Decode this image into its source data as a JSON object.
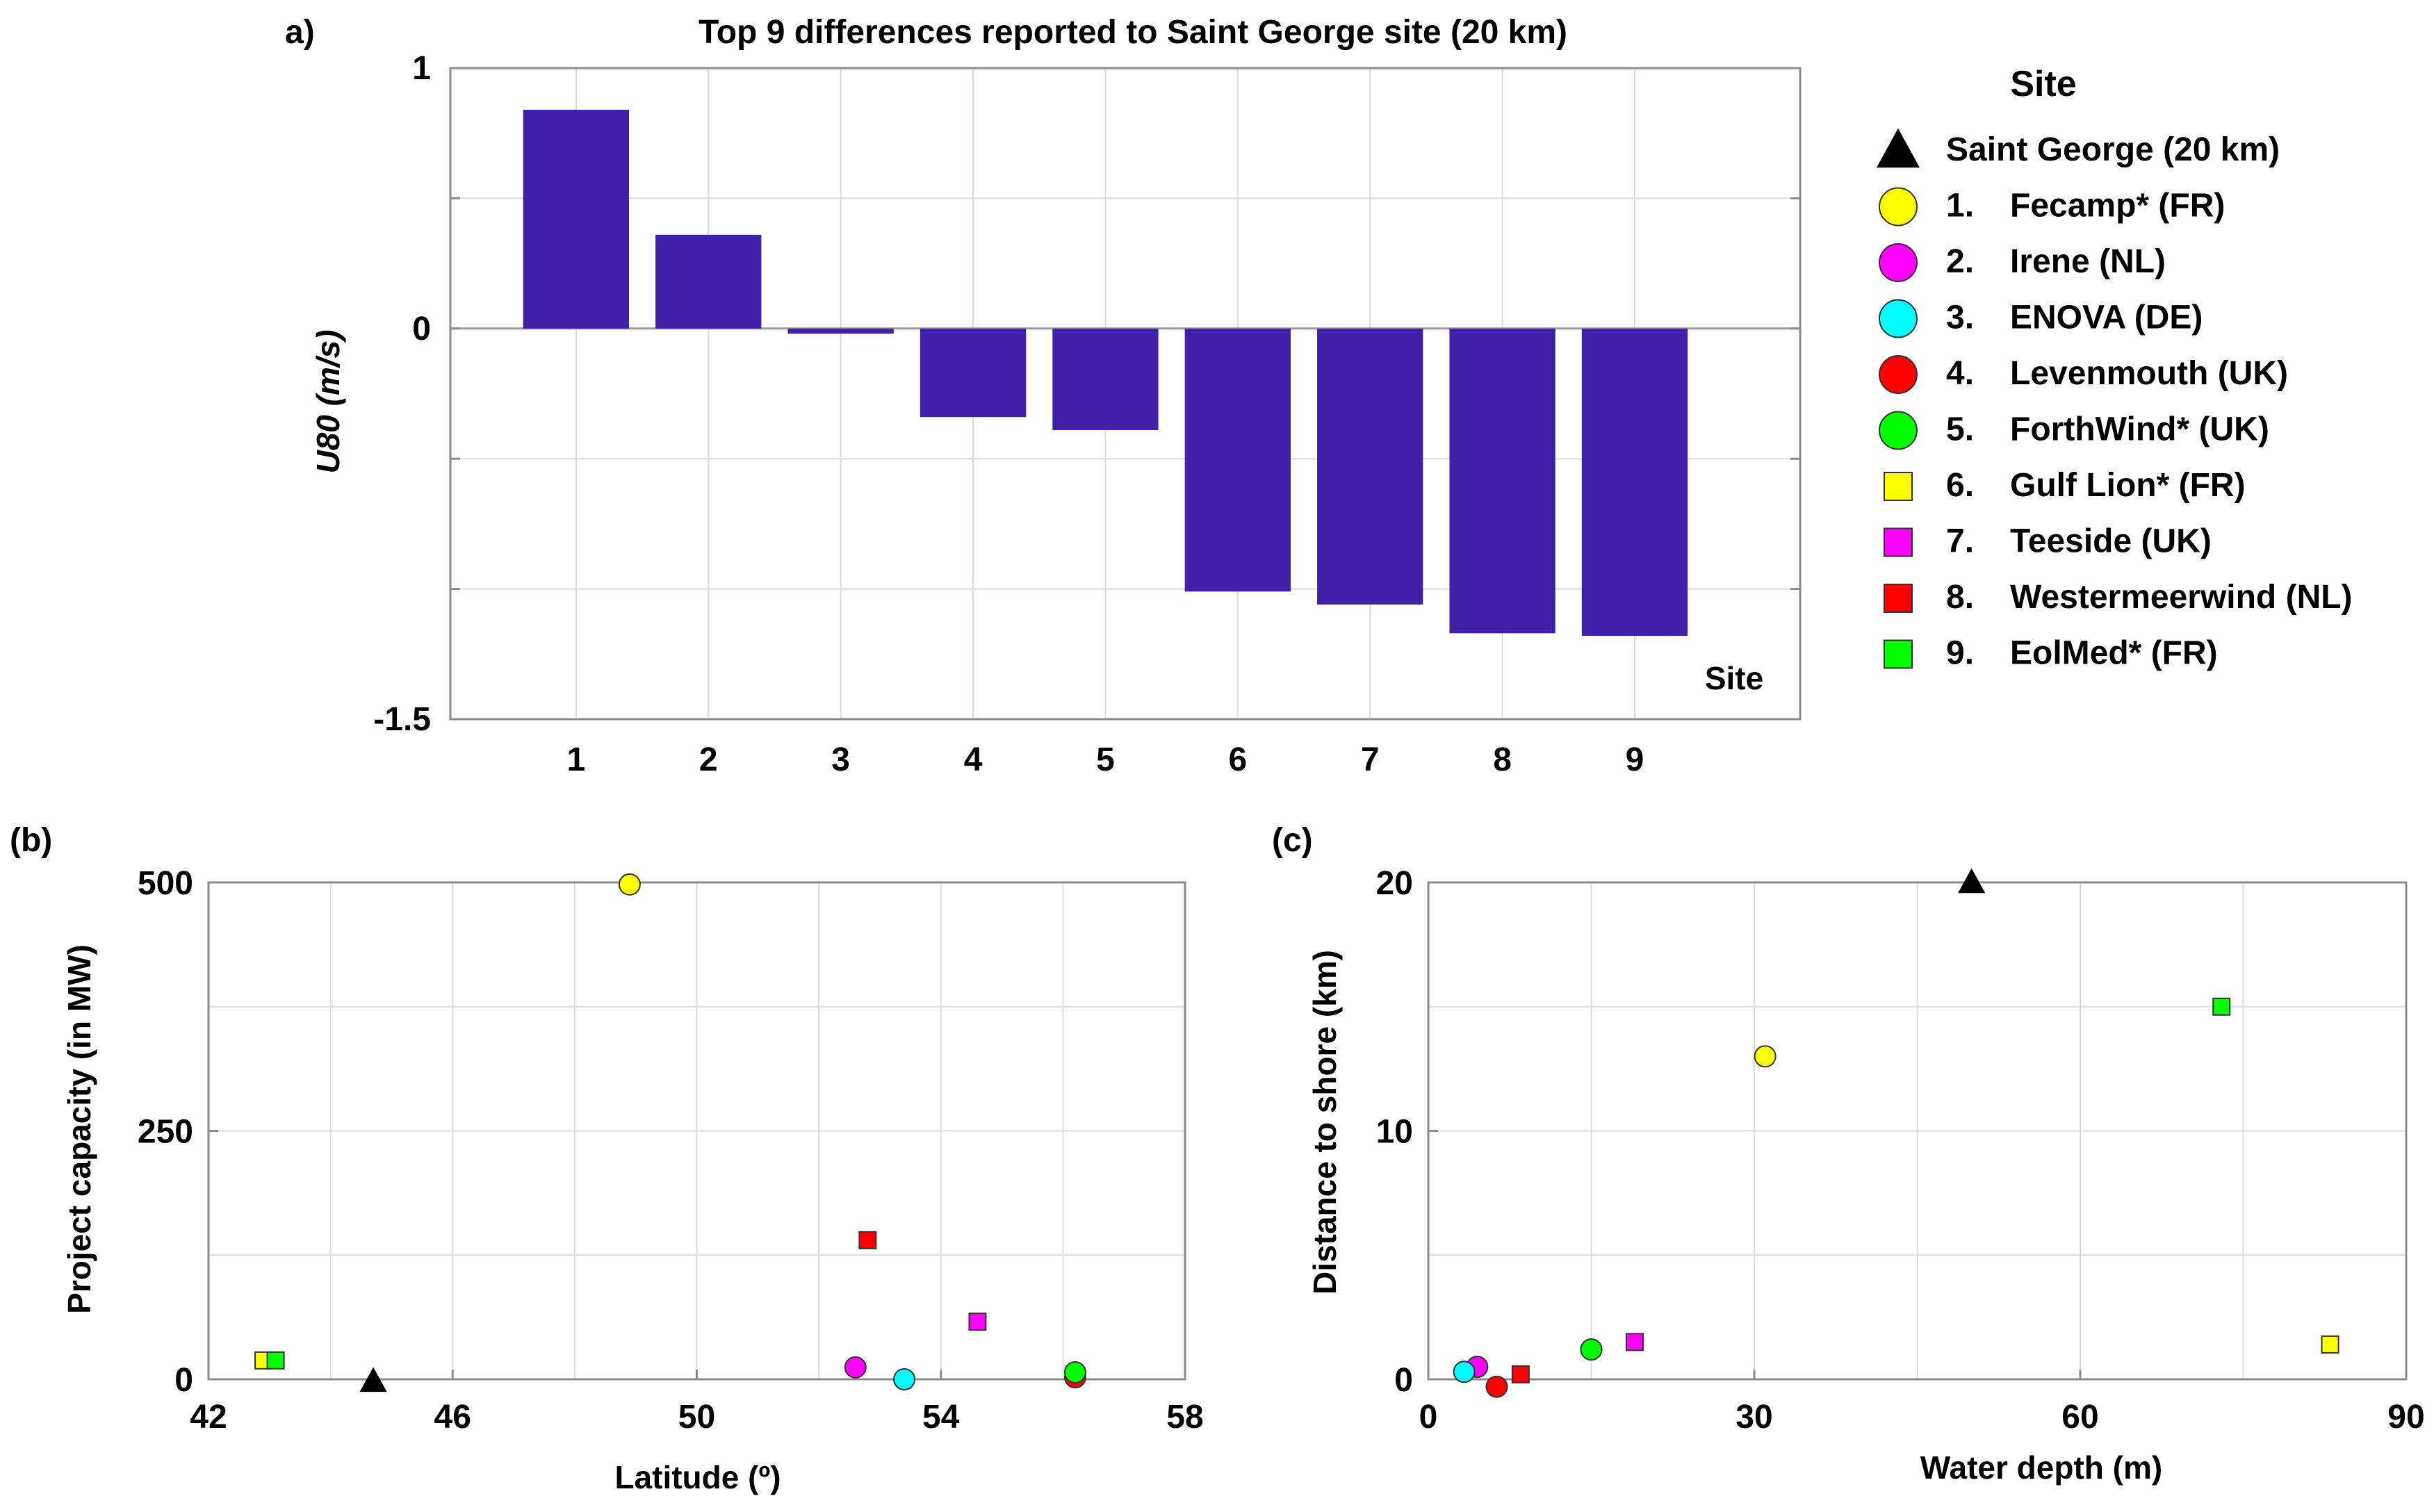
{
  "colors": {
    "bar": "#4020A8",
    "yellow": "#FFFF00",
    "magenta": "#FF00FF",
    "cyan": "#00FFFF",
    "red": "#FF0000",
    "green": "#00FF00",
    "black": "#000000"
  },
  "chart_data": [
    {
      "panel_label": "a)",
      "type": "bar",
      "title": "Top 9 differences reported to Saint George site (20 km)",
      "xlabel": "Site",
      "ylabel": "U80 (m/s)",
      "categories": [
        "1",
        "2",
        "3",
        "4",
        "5",
        "6",
        "7",
        "8",
        "9"
      ],
      "values": [
        0.84,
        0.36,
        -0.02,
        -0.34,
        -0.39,
        -1.01,
        -1.06,
        -1.17,
        -1.18
      ],
      "ylim": [
        -1.5,
        1
      ],
      "yticks": [
        -1.5,
        -1.0,
        -0.5,
        0,
        0.5,
        1
      ],
      "yticklabels": [
        "-1.5",
        "",
        "",
        "0",
        "",
        "1"
      ],
      "grid": true,
      "legend": {
        "title": "Site",
        "placement": "right",
        "entries": [
          {
            "num": "",
            "name": "Saint George (20 km)",
            "marker": "triangle",
            "color": "black"
          },
          {
            "num": "1.",
            "name": "Fecamp* (FR)",
            "marker": "circle",
            "color": "yellow"
          },
          {
            "num": "2.",
            "name": "Irene (NL)",
            "marker": "circle",
            "color": "magenta"
          },
          {
            "num": "3.",
            "name": "ENOVA (DE)",
            "marker": "circle",
            "color": "cyan"
          },
          {
            "num": "4.",
            "name": "Levenmouth (UK)",
            "marker": "circle",
            "color": "red"
          },
          {
            "num": "5.",
            "name": "ForthWind* (UK)",
            "marker": "circle",
            "color": "green"
          },
          {
            "num": "6.",
            "name": "Gulf Lion* (FR)",
            "marker": "square",
            "color": "yellow"
          },
          {
            "num": "7.",
            "name": "Teeside (UK)",
            "marker": "square",
            "color": "magenta"
          },
          {
            "num": "8.",
            "name": "Westermeerwind (NL)",
            "marker": "square",
            "color": "red"
          },
          {
            "num": "9.",
            "name": "EolMed* (FR)",
            "marker": "square",
            "color": "green"
          }
        ]
      }
    },
    {
      "panel_label": "(b)",
      "type": "scatter",
      "xlabel": "Latitude (º)",
      "ylabel": "Project capacity (in MW)",
      "xlim": [
        42,
        58
      ],
      "ylim": [
        0,
        500
      ],
      "xticks": [
        42,
        46,
        50,
        54,
        58
      ],
      "yticks": [
        0,
        250,
        500
      ],
      "grid": true,
      "points": [
        {
          "site": "Saint George (20 km)",
          "x": 44.7,
          "y": -2,
          "marker": "triangle",
          "color": "black"
        },
        {
          "site": "Fecamp* (FR)",
          "x": 48.9,
          "y": 498,
          "marker": "circle",
          "color": "yellow"
        },
        {
          "site": "Irene (NL)",
          "x": 52.6,
          "y": 12,
          "marker": "circle",
          "color": "magenta"
        },
        {
          "site": "ENOVA (DE)",
          "x": 53.4,
          "y": 0,
          "marker": "circle",
          "color": "cyan"
        },
        {
          "site": "Levenmouth (UK)",
          "x": 56.2,
          "y": 2,
          "marker": "circle",
          "color": "red"
        },
        {
          "site": "ForthWind* (UK)",
          "x": 56.2,
          "y": 7,
          "marker": "circle",
          "color": "green"
        },
        {
          "site": "Gulf Lion* (FR)",
          "x": 42.9,
          "y": 19,
          "marker": "square",
          "color": "yellow"
        },
        {
          "site": "Teeside (UK)",
          "x": 54.6,
          "y": 58,
          "marker": "square",
          "color": "magenta"
        },
        {
          "site": "Westermeerwind (NL)",
          "x": 52.8,
          "y": 140,
          "marker": "square",
          "color": "red"
        },
        {
          "site": "EolMed* (FR)",
          "x": 43.1,
          "y": 19,
          "marker": "square",
          "color": "green"
        }
      ]
    },
    {
      "panel_label": "(c)",
      "type": "scatter",
      "xlabel": "Water depth (m)",
      "ylabel": "Distance to shore (km)",
      "xlim": [
        0,
        90
      ],
      "ylim": [
        0,
        20
      ],
      "xticks": [
        0,
        30,
        60,
        90
      ],
      "yticks": [
        0,
        10,
        20
      ],
      "grid": true,
      "points": [
        {
          "site": "Saint George (20 km)",
          "x": 50,
          "y": 20,
          "marker": "triangle",
          "color": "black"
        },
        {
          "site": "Fecamp* (FR)",
          "x": 31,
          "y": 13,
          "marker": "circle",
          "color": "yellow"
        },
        {
          "site": "Irene (NL)",
          "x": 4.5,
          "y": 0.5,
          "marker": "circle",
          "color": "magenta"
        },
        {
          "site": "ENOVA (DE)",
          "x": 3.3,
          "y": 0.3,
          "marker": "circle",
          "color": "cyan"
        },
        {
          "site": "Levenmouth (UK)",
          "x": 6.3,
          "y": -0.3,
          "marker": "circle",
          "color": "red"
        },
        {
          "site": "ForthWind* (UK)",
          "x": 15,
          "y": 1.2,
          "marker": "circle",
          "color": "green"
        },
        {
          "site": "Gulf Lion* (FR)",
          "x": 83,
          "y": 1.4,
          "marker": "square",
          "color": "yellow"
        },
        {
          "site": "Teeside (UK)",
          "x": 19,
          "y": 1.5,
          "marker": "square",
          "color": "magenta"
        },
        {
          "site": "Westermeerwind (NL)",
          "x": 8.5,
          "y": 0.2,
          "marker": "square",
          "color": "red"
        },
        {
          "site": "EolMed* (FR)",
          "x": 73,
          "y": 15,
          "marker": "square",
          "color": "green"
        }
      ]
    }
  ]
}
